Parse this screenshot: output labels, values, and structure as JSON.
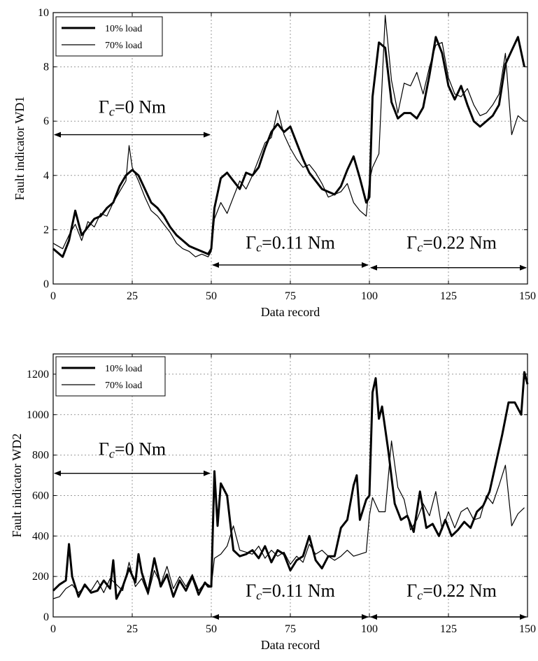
{
  "chart_data": [
    {
      "type": "line",
      "ylabel": "Fault indicator WD1",
      "xlabel": "Data record",
      "xlim": [
        0,
        150
      ],
      "ylim": [
        0,
        10
      ],
      "xticks": [
        "0",
        "25",
        "50",
        "75",
        "100",
        "125",
        "150"
      ],
      "yticks": [
        "0",
        "2",
        "4",
        "6",
        "8",
        "10"
      ],
      "grid": true,
      "legend_position": "top-left",
      "series": [
        {
          "name": "10% load",
          "style": "thick",
          "x": [
            0,
            3,
            5,
            7,
            9,
            11,
            13,
            15,
            17,
            19,
            21,
            23,
            25,
            27,
            29,
            31,
            33,
            35,
            37,
            39,
            41,
            43,
            45,
            47,
            49,
            50,
            51,
            53,
            55,
            57,
            59,
            61,
            63,
            65,
            67,
            69,
            71,
            73,
            75,
            77,
            79,
            81,
            83,
            85,
            87,
            89,
            91,
            93,
            95,
            97,
            99,
            100,
            101,
            103,
            105,
            107,
            109,
            111,
            113,
            115,
            117,
            119,
            121,
            123,
            125,
            127,
            129,
            131,
            133,
            135,
            137,
            139,
            141,
            143,
            145,
            147,
            149
          ],
          "y": [
            1.3,
            1.0,
            1.6,
            2.7,
            1.8,
            2.1,
            2.4,
            2.5,
            2.8,
            3.0,
            3.6,
            4.0,
            4.2,
            4.0,
            3.5,
            3.0,
            2.8,
            2.5,
            2.1,
            1.8,
            1.6,
            1.4,
            1.3,
            1.2,
            1.1,
            1.3,
            2.8,
            3.9,
            4.1,
            3.8,
            3.5,
            4.1,
            4.0,
            4.3,
            5.0,
            5.6,
            5.9,
            5.6,
            5.8,
            5.2,
            4.6,
            4.1,
            3.8,
            3.5,
            3.4,
            3.3,
            3.6,
            4.2,
            4.7,
            3.9,
            3.0,
            3.2,
            6.9,
            8.9,
            8.7,
            6.7,
            6.1,
            6.3,
            6.3,
            6.1,
            6.5,
            7.7,
            9.1,
            8.5,
            7.3,
            6.8,
            7.3,
            6.6,
            6.0,
            5.8,
            6.0,
            6.2,
            6.6,
            8.1,
            8.6,
            9.1,
            8.0
          ]
        },
        {
          "name": "70% load",
          "style": "thin",
          "x": [
            0,
            3,
            5,
            7,
            9,
            11,
            13,
            15,
            17,
            19,
            21,
            23,
            24,
            25,
            27,
            29,
            31,
            33,
            35,
            37,
            39,
            41,
            43,
            45,
            47,
            49,
            50,
            51,
            53,
            55,
            57,
            59,
            61,
            63,
            65,
            67,
            69,
            71,
            73,
            75,
            77,
            79,
            81,
            83,
            85,
            87,
            89,
            91,
            93,
            95,
            97,
            99,
            100,
            101,
            103,
            105,
            107,
            109,
            111,
            113,
            115,
            117,
            119,
            121,
            123,
            125,
            127,
            129,
            131,
            133,
            135,
            137,
            139,
            141,
            143,
            145,
            147,
            149
          ],
          "y": [
            1.5,
            1.3,
            1.8,
            2.2,
            1.6,
            2.3,
            2.1,
            2.6,
            2.5,
            3.0,
            3.4,
            3.8,
            5.1,
            4.3,
            3.8,
            3.2,
            2.7,
            2.5,
            2.2,
            1.9,
            1.5,
            1.3,
            1.2,
            1.0,
            1.1,
            1.0,
            1.2,
            2.4,
            3.0,
            2.6,
            3.2,
            3.8,
            3.5,
            4.0,
            4.6,
            5.2,
            5.4,
            6.4,
            5.5,
            5.0,
            4.6,
            4.3,
            4.4,
            4.1,
            3.7,
            3.2,
            3.3,
            3.4,
            3.7,
            3.0,
            2.7,
            2.5,
            3.8,
            4.3,
            4.8,
            9.9,
            7.5,
            6.3,
            7.4,
            7.3,
            7.8,
            7.0,
            8.0,
            8.8,
            8.9,
            7.6,
            7.0,
            6.9,
            7.2,
            6.6,
            6.2,
            6.3,
            6.6,
            7.0,
            8.5,
            5.5,
            6.2,
            6.0
          ]
        }
      ],
      "annotations": [
        {
          "label_html": "Γ<i>c</i>=0 Nm",
          "from": 0,
          "to": 50,
          "y": 5.5,
          "label_y": 6.3,
          "label_x": 25
        },
        {
          "label_html": "Γ<i>c</i>=0.11 Nm",
          "from": 50,
          "to": 100,
          "y": 0.7,
          "label_y": 1.3,
          "label_x": 75
        },
        {
          "label_html": "Γ<i>c</i>=0.22 Nm",
          "from": 100,
          "to": 150,
          "y": 0.6,
          "label_y": 1.3,
          "label_x": 126
        }
      ]
    },
    {
      "type": "line",
      "ylabel": "Fault indicator WD2",
      "xlabel": "Data record",
      "xlim": [
        0,
        150
      ],
      "ylim": [
        0,
        1300
      ],
      "xticks": [
        "0",
        "25",
        "50",
        "75",
        "100",
        "125",
        "150"
      ],
      "yticks": [
        "0",
        "200",
        "400",
        "600",
        "800",
        "1000",
        "1200"
      ],
      "grid": true,
      "legend_position": "top-left",
      "series": [
        {
          "name": "10% load",
          "style": "thick",
          "x": [
            0,
            2,
            4,
            5,
            6,
            8,
            10,
            12,
            14,
            16,
            18,
            19,
            20,
            22,
            24,
            26,
            27,
            28,
            30,
            32,
            34,
            36,
            38,
            40,
            42,
            44,
            46,
            48,
            49,
            50,
            51,
            52,
            53,
            55,
            57,
            59,
            61,
            63,
            65,
            67,
            69,
            71,
            73,
            75,
            77,
            79,
            81,
            83,
            85,
            87,
            89,
            91,
            93,
            95,
            96,
            97,
            99,
            100,
            101,
            102,
            103,
            104,
            106,
            108,
            110,
            112,
            114,
            116,
            118,
            120,
            122,
            124,
            126,
            128,
            130,
            132,
            134,
            136,
            138,
            140,
            142,
            144,
            146,
            148,
            149,
            150
          ],
          "y": [
            130,
            160,
            180,
            360,
            200,
            100,
            160,
            120,
            130,
            180,
            140,
            280,
            90,
            150,
            240,
            170,
            310,
            220,
            120,
            290,
            150,
            210,
            100,
            180,
            130,
            200,
            110,
            170,
            150,
            150,
            720,
            450,
            660,
            600,
            330,
            300,
            310,
            330,
            290,
            350,
            270,
            330,
            310,
            230,
            280,
            300,
            400,
            280,
            240,
            300,
            300,
            440,
            480,
            650,
            700,
            480,
            580,
            600,
            1110,
            1180,
            980,
            1040,
            820,
            560,
            480,
            500,
            420,
            620,
            440,
            460,
            400,
            480,
            400,
            430,
            470,
            440,
            520,
            550,
            620,
            760,
            900,
            1060,
            1060,
            1000,
            1210,
            1150
          ]
        },
        {
          "name": "70% load",
          "style": "thin",
          "x": [
            0,
            2,
            4,
            6,
            8,
            10,
            12,
            14,
            16,
            18,
            20,
            22,
            24,
            26,
            28,
            30,
            32,
            34,
            36,
            38,
            40,
            42,
            44,
            46,
            48,
            50,
            51,
            53,
            55,
            57,
            59,
            61,
            63,
            65,
            67,
            69,
            71,
            73,
            75,
            77,
            79,
            81,
            83,
            85,
            87,
            89,
            91,
            93,
            95,
            97,
            99,
            100,
            101,
            103,
            105,
            107,
            109,
            111,
            113,
            115,
            117,
            119,
            121,
            123,
            125,
            127,
            129,
            131,
            133,
            135,
            137,
            139,
            141,
            143,
            145,
            147,
            149
          ],
          "y": [
            90,
            100,
            140,
            160,
            120,
            150,
            130,
            180,
            120,
            190,
            160,
            130,
            270,
            150,
            190,
            110,
            230,
            160,
            250,
            140,
            200,
            150,
            210,
            130,
            170,
            150,
            290,
            310,
            350,
            450,
            330,
            320,
            310,
            350,
            290,
            330,
            300,
            320,
            260,
            300,
            270,
            360,
            310,
            330,
            300,
            280,
            300,
            330,
            300,
            310,
            320,
            500,
            590,
            520,
            520,
            870,
            640,
            580,
            430,
            480,
            560,
            500,
            620,
            430,
            520,
            440,
            520,
            540,
            480,
            490,
            600,
            560,
            650,
            750,
            450,
            510,
            540
          ]
        }
      ],
      "annotations": [
        {
          "label_html": "Γ<i>c</i>=0 Nm",
          "from": 0,
          "to": 50,
          "y": 710,
          "label_y": 800,
          "label_x": 25
        },
        {
          "label_html": "Γ<i>c</i>=0.11 Nm",
          "from": 50,
          "to": 100,
          "y": 0,
          "label_y": 100,
          "label_x": 75
        },
        {
          "label_html": "Γ<i>c</i>=0.22 Nm",
          "from": 100,
          "to": 150,
          "y": 0,
          "label_y": 100,
          "label_x": 126
        }
      ]
    }
  ]
}
